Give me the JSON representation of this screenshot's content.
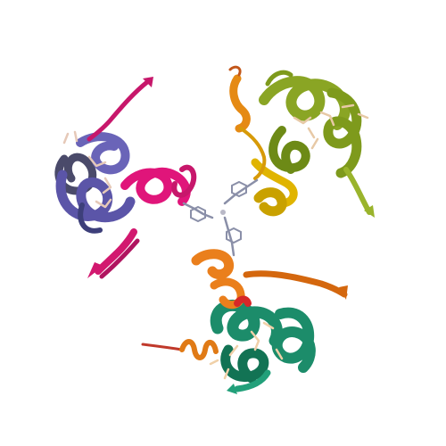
{
  "scene": {
    "kind": "protein-cartoon",
    "background": "#ffffff",
    "molecules": [
      {
        "name": "upper-left-domain",
        "colors": [
          "#5b55a8",
          "#3d3f7a",
          "#c7176b",
          "#e0157a",
          "#8f8f9a"
        ]
      },
      {
        "name": "upper-right-domain",
        "colors": [
          "#8aa524",
          "#6d8a16",
          "#c9a100",
          "#e0b400",
          "#e58a14"
        ]
      },
      {
        "name": "bottom-domain",
        "colors": [
          "#1c8c6a",
          "#127354",
          "#d4670e",
          "#ea7f1c",
          "#c0392b"
        ]
      },
      {
        "name": "central-linker",
        "colors": [
          "#8a8fa8",
          "#b9b9c7"
        ]
      }
    ]
  }
}
